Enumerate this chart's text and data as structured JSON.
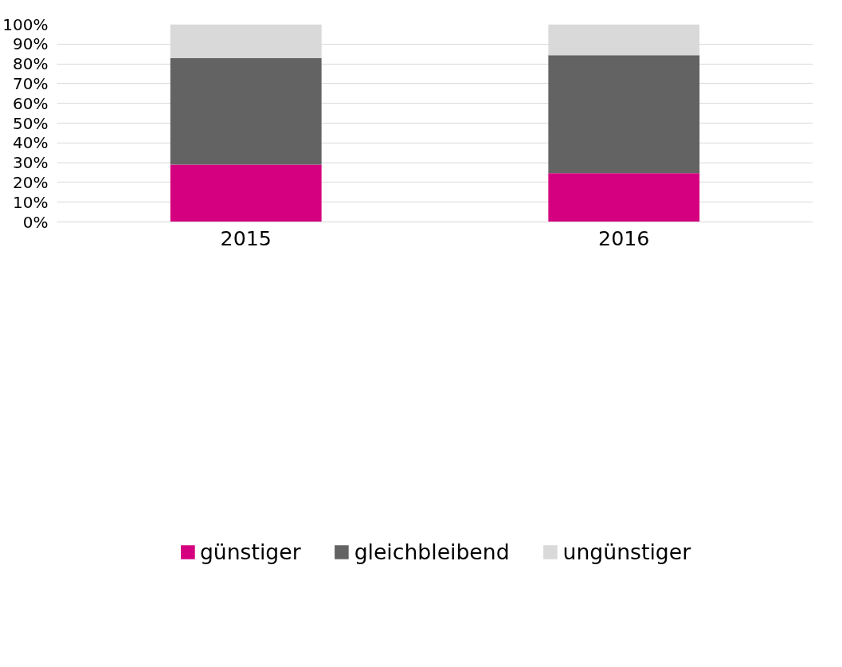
{
  "chart_data": {
    "type": "bar",
    "stacked": true,
    "categories": [
      "2015",
      "2016"
    ],
    "series": [
      {
        "name": "günstiger",
        "color": "#d5007f",
        "values": [
          29.0,
          24.7
        ]
      },
      {
        "name": "gleichbleibend",
        "color": "#636363",
        "values": [
          54.0,
          59.7
        ]
      },
      {
        "name": "ungünstiger",
        "color": "#d9d9d9",
        "values": [
          17.0,
          15.6
        ]
      }
    ],
    "ylim": [
      0,
      100
    ],
    "yticks": [
      {
        "value": 0,
        "label": "0%"
      },
      {
        "value": 10,
        "label": "10%"
      },
      {
        "value": 20,
        "label": "20%"
      },
      {
        "value": 30,
        "label": "30%"
      },
      {
        "value": 40,
        "label": "40%"
      },
      {
        "value": 50,
        "label": "50%"
      },
      {
        "value": 60,
        "label": "60%"
      },
      {
        "value": 70,
        "label": "70%"
      },
      {
        "value": 80,
        "label": "80%"
      },
      {
        "value": 90,
        "label": "90%"
      },
      {
        "value": 100,
        "label": "100%"
      }
    ],
    "grid": "y",
    "legend": "bottom"
  }
}
